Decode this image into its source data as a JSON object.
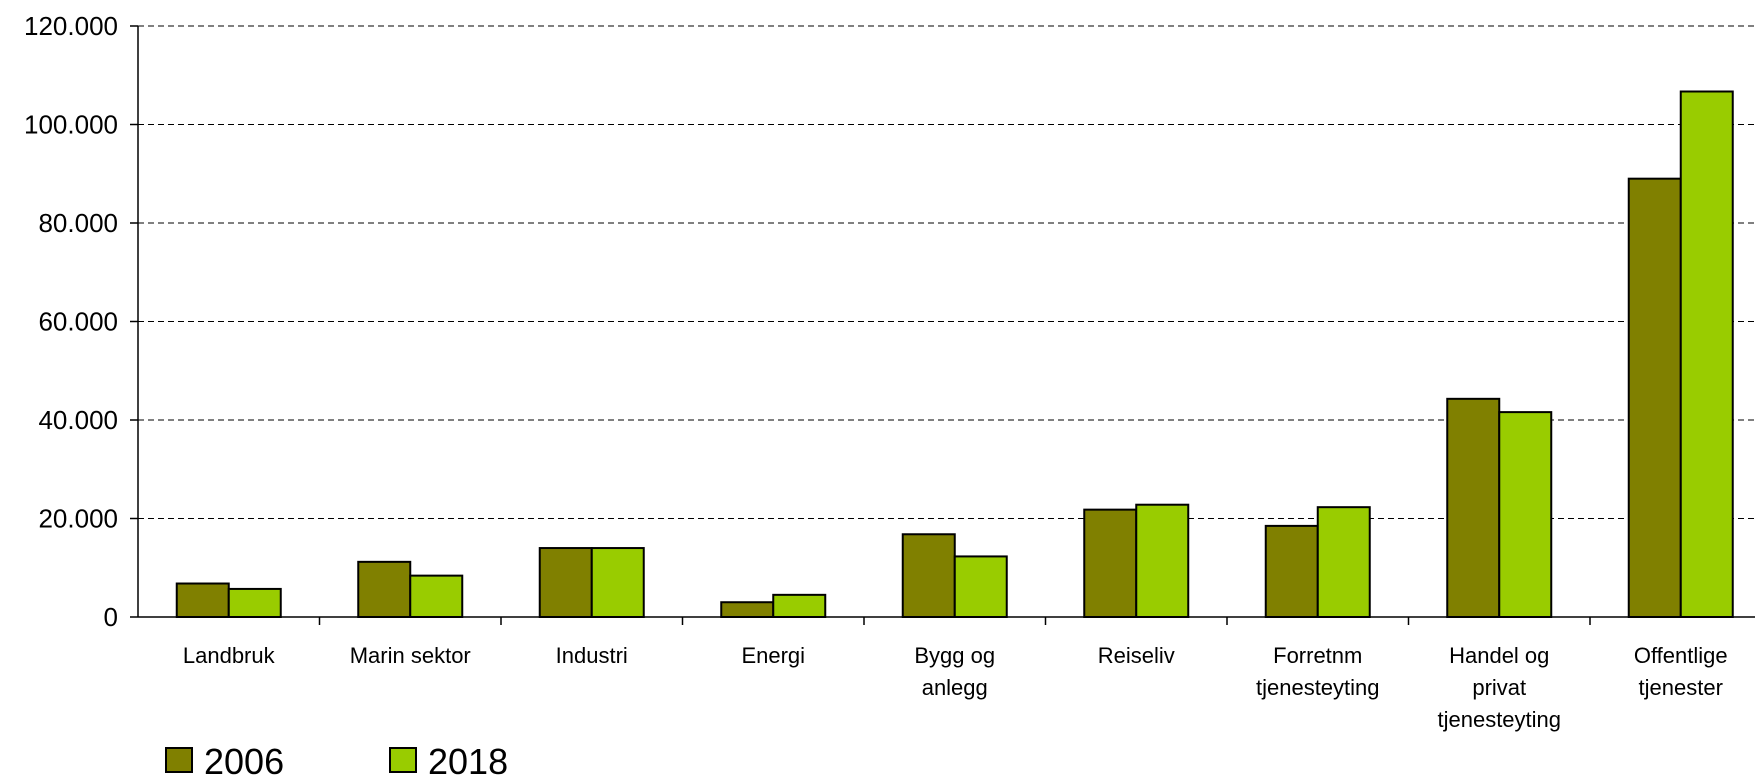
{
  "chart_data": {
    "type": "bar",
    "title": "",
    "xlabel": "",
    "ylabel": "",
    "ylim": [
      0,
      120000
    ],
    "yticks": [
      0,
      20000,
      40000,
      60000,
      80000,
      100000,
      120000
    ],
    "ytick_labels": [
      "0",
      "20.000",
      "40.000",
      "60.000",
      "80.000",
      "100.000",
      "120.000"
    ],
    "grid": true,
    "legend_position": "bottom-left",
    "categories": [
      [
        "Landbruk"
      ],
      [
        "Marin sektor"
      ],
      [
        "Industri"
      ],
      [
        "Energi"
      ],
      [
        "Bygg og",
        "anlegg"
      ],
      [
        "Reiseliv"
      ],
      [
        "Forretnm",
        "tjenesteyting"
      ],
      [
        "Handel og",
        "privat",
        "tjenesteyting"
      ],
      [
        "Offentlige",
        "tjenester"
      ]
    ],
    "series": [
      {
        "name": "2006",
        "color": "#808000",
        "values": [
          6800,
          11200,
          14000,
          3000,
          16800,
          21800,
          18500,
          44300,
          89000
        ]
      },
      {
        "name": "2018",
        "color": "#99CC00",
        "values": [
          5700,
          8400,
          14000,
          4500,
          12300,
          22800,
          22300,
          41600,
          106700
        ]
      }
    ]
  }
}
